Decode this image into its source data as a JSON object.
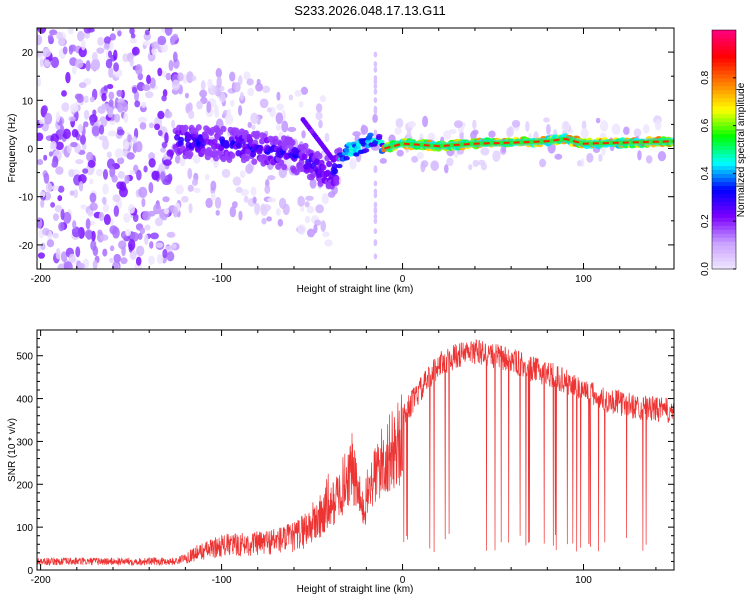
{
  "title": "S233.2026.048.17.13.G11",
  "chart_data": [
    {
      "type": "heatmap",
      "name": "spectrogram",
      "xlabel": "Height of straight line (km)",
      "ylabel": "Frequency (Hz)",
      "xlim": [
        -202,
        150
      ],
      "ylim": [
        -25,
        25
      ],
      "xticks": [
        -200,
        -100,
        0,
        100
      ],
      "xtick_labels": [
        "-200",
        "-100",
        "0",
        "100"
      ],
      "yticks": [
        -20,
        -10,
        0,
        10,
        20
      ],
      "ytick_labels": [
        "-20",
        "-10",
        "0",
        "10",
        "20"
      ],
      "signal_track": {
        "x": [
          -120,
          -100,
          -80,
          -60,
          -50,
          -45,
          -38,
          -34,
          -30,
          -25,
          -20,
          -15,
          -10,
          0,
          20,
          40,
          60,
          80,
          90,
          100,
          120,
          150
        ],
        "y": [
          1.5,
          1,
          0,
          -1.5,
          -3,
          -4.5,
          -5,
          -2,
          -0.5,
          0,
          1,
          2,
          0,
          1,
          0.5,
          1,
          1.2,
          1.5,
          2,
          1,
          1.2,
          1.5
        ]
      },
      "colorbar": {
        "label": "Normalized spectral amplitude",
        "range": [
          0,
          1
        ],
        "ticks": [
          0.0,
          0.2,
          0.4,
          0.6,
          0.8
        ],
        "tick_labels": [
          "0.0",
          "0.2",
          "0.4",
          "0.6",
          "0.8"
        ],
        "colors": [
          "#f0e8ff",
          "#c9a0ff",
          "#7a00ff",
          "#0000ff",
          "#00ffff",
          "#00ff00",
          "#ffff00",
          "#ff8000",
          "#ff0000",
          "#ff0080"
        ]
      }
    },
    {
      "type": "line",
      "name": "snr",
      "xlabel": "Height of straight line (km)",
      "ylabel": "SNR (10 * v/v)",
      "color": "#ee3333",
      "xlim": [
        -202,
        150
      ],
      "ylim": [
        0,
        560
      ],
      "xticks": [
        -200,
        -100,
        0,
        100
      ],
      "xtick_labels": [
        "-200",
        "-100",
        "0",
        "100"
      ],
      "yticks": [
        0,
        100,
        200,
        300,
        400,
        500
      ],
      "ytick_labels": [
        "0",
        "100",
        "200",
        "300",
        "400",
        "500"
      ],
      "envelope": {
        "x": [
          -202,
          -150,
          -125,
          -115,
          -100,
          -80,
          -60,
          -45,
          -35,
          -28,
          -22,
          -18,
          -12,
          -5,
          0,
          10,
          20,
          30,
          40,
          50,
          60,
          70,
          80,
          90,
          100,
          110,
          120,
          130,
          140,
          150
        ],
        "y": [
          20,
          20,
          20,
          40,
          60,
          65,
          80,
          130,
          210,
          280,
          160,
          230,
          290,
          330,
          360,
          420,
          480,
          500,
          510,
          500,
          490,
          470,
          460,
          440,
          420,
          400,
          390,
          380,
          375,
          370
        ]
      }
    }
  ]
}
